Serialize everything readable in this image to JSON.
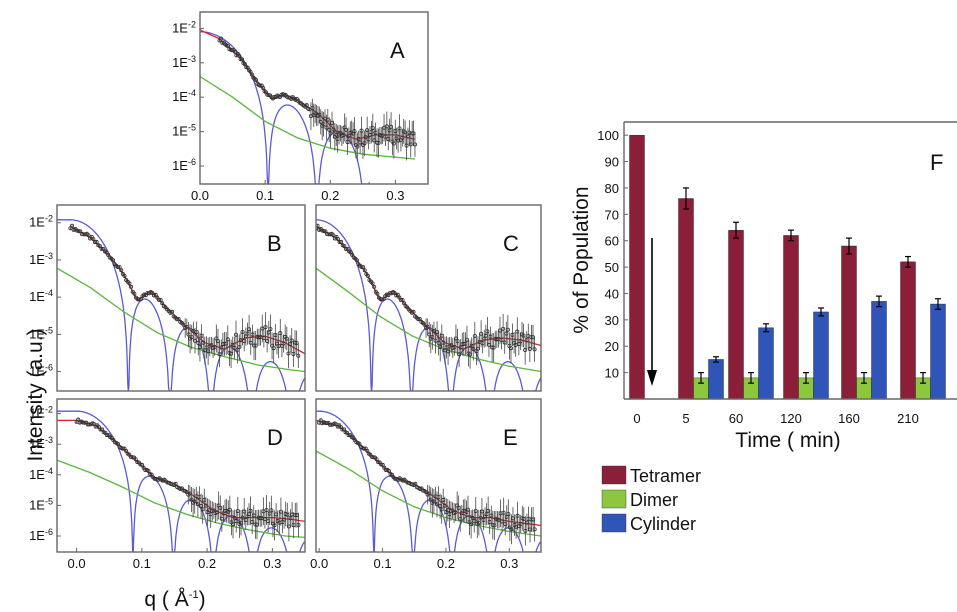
{
  "chart_data": [
    {
      "id": "A",
      "type": "line",
      "panel_label": "A",
      "yscale": "log",
      "xlim": [
        0.0,
        0.35
      ],
      "ylim": [
        3e-07,
        0.03
      ],
      "xticks": [
        "0.0",
        "0.1",
        "0.2",
        "0.3"
      ],
      "yticks": [
        {
          "label": "1E-2",
          "v": 0.01
        },
        {
          "label": "1E-3",
          "v": 0.001
        },
        {
          "label": "1E-4",
          "v": 0.0001
        },
        {
          "label": "1E-5",
          "v": 1e-05
        },
        {
          "label": "1E-6",
          "v": 1e-06
        }
      ],
      "series": [
        {
          "color": "#e02020",
          "x": [
            0.0,
            0.03,
            0.06,
            0.09,
            0.11,
            0.13,
            0.15,
            0.18,
            0.21,
            0.24,
            0.27,
            0.3,
            0.33
          ],
          "y": [
            0.009,
            0.005,
            0.0015,
            0.00025,
            9e-05,
            0.00012,
            8e-05,
            3.5e-05,
            1e-05,
            6e-06,
            8e-06,
            8e-06,
            6e-06
          ]
        },
        {
          "color": "#59b83a",
          "x": [
            0.0,
            0.05,
            0.1,
            0.15,
            0.2,
            0.25,
            0.3,
            0.33
          ],
          "y": [
            0.0004,
            0.0001,
            2e-05,
            6.5e-06,
            3.3e-06,
            2.2e-06,
            1.8e-06,
            1.6e-06
          ]
        }
      ],
      "sphere": {
        "color": "#5a5ad6",
        "R": 43,
        "A": 0.008,
        "y_floor": 3e-07,
        "x_max": 0.26
      },
      "observed": {
        "x_start": 0.03,
        "x_end": 0.33
      }
    },
    {
      "id": "B",
      "type": "line",
      "panel_label": "B",
      "yscale": "log",
      "xlim": [
        -0.02,
        0.35
      ],
      "ylim": [
        3e-07,
        0.03
      ],
      "yticks": [
        {
          "label": "1E-2",
          "v": 0.01
        },
        {
          "label": "1E-3",
          "v": 0.001
        },
        {
          "label": "1E-4",
          "v": 0.0001
        },
        {
          "label": "1E-5",
          "v": 1e-05
        },
        {
          "label": "1E-6",
          "v": 1e-06
        }
      ],
      "series": [
        {
          "color": "#e02020",
          "x": [
            0.0,
            0.03,
            0.06,
            0.08,
            0.1,
            0.12,
            0.14,
            0.17,
            0.2,
            0.23,
            0.26,
            0.29,
            0.32,
            0.35
          ],
          "y": [
            0.008,
            0.004,
            0.0012,
            0.0004,
            8e-05,
            0.00015,
            6e-05,
            1.8e-05,
            6e-06,
            4e-06,
            8e-06,
            9e-06,
            6e-06,
            3e-06
          ]
        },
        {
          "color": "#59b83a",
          "x": [
            -0.02,
            0.03,
            0.08,
            0.13,
            0.18,
            0.23,
            0.28,
            0.33,
            0.35
          ],
          "y": [
            0.0006,
            0.00018,
            4e-05,
            1.1e-05,
            4.5e-06,
            2.5e-06,
            1.5e-06,
            1.1e-06,
            1e-06
          ]
        }
      ],
      "sphere": {
        "color": "#5a5ad6",
        "R": 52,
        "A": 0.012,
        "y_floor": 3e-07,
        "x_max": 0.35
      },
      "observed": {
        "x_start": 0.0,
        "x_end": 0.34
      }
    },
    {
      "id": "C",
      "type": "line",
      "panel_label": "C",
      "yscale": "log",
      "xlim": [
        0.0,
        0.35
      ],
      "ylim": [
        3e-07,
        0.03
      ],
      "series": [
        {
          "color": "#e02020",
          "x": [
            0.0,
            0.03,
            0.06,
            0.08,
            0.1,
            0.12,
            0.14,
            0.17,
            0.2,
            0.23,
            0.26,
            0.29,
            0.32,
            0.35
          ],
          "y": [
            0.008,
            0.004,
            0.0012,
            0.0004,
            8e-05,
            0.00015,
            6e-05,
            1.8e-05,
            6e-06,
            4e-06,
            7e-06,
            8e-06,
            7e-06,
            5e-06
          ]
        },
        {
          "color": "#59b83a",
          "x": [
            0.0,
            0.05,
            0.1,
            0.15,
            0.2,
            0.25,
            0.3,
            0.35
          ],
          "y": [
            0.0006,
            0.00014,
            3e-05,
            9e-06,
            4e-06,
            2.2e-06,
            1.4e-06,
            1e-06
          ]
        }
      ],
      "sphere": {
        "color": "#5a5ad6",
        "R": 52,
        "A": 0.012,
        "y_floor": 3e-07,
        "x_max": 0.35
      },
      "observed": {
        "x_start": 0.0,
        "x_end": 0.34
      }
    },
    {
      "id": "D",
      "type": "line",
      "panel_label": "D",
      "yscale": "log",
      "xlim": [
        -0.03,
        0.35
      ],
      "ylim": [
        3e-07,
        0.03
      ],
      "xticks": [
        "0.0",
        "0.1",
        "0.2",
        "0.3"
      ],
      "yticks": [
        {
          "label": "1E-2",
          "v": 0.01
        },
        {
          "label": "1E-3",
          "v": 0.001
        },
        {
          "label": "1E-4",
          "v": 0.0001
        },
        {
          "label": "1E-5",
          "v": 1e-05
        },
        {
          "label": "1E-6",
          "v": 1e-06
        }
      ],
      "series": [
        {
          "color": "#e02020",
          "x": [
            -0.03,
            0.0,
            0.03,
            0.06,
            0.09,
            0.12,
            0.15,
            0.18,
            0.21,
            0.24,
            0.27,
            0.3,
            0.33,
            0.35
          ],
          "y": [
            0.006,
            0.006,
            0.004,
            0.0012,
            0.0003,
            8e-05,
            5e-05,
            2e-05,
            7e-06,
            4e-06,
            4e-06,
            4e-06,
            3.5e-06,
            3e-06
          ]
        },
        {
          "color": "#59b83a",
          "x": [
            -0.03,
            0.02,
            0.07,
            0.12,
            0.17,
            0.22,
            0.27,
            0.32,
            0.35
          ],
          "y": [
            0.0003,
            0.00012,
            4e-05,
            1.2e-05,
            5e-06,
            2.5e-06,
            1.5e-06,
            1e-06,
            9e-07
          ]
        }
      ],
      "sphere": {
        "color": "#5a5ad6",
        "R": 52,
        "A": 0.012,
        "y_floor": 3e-07,
        "x_max": 0.35
      },
      "observed": {
        "x_start": 0.0,
        "x_end": 0.34
      }
    },
    {
      "id": "E",
      "type": "line",
      "panel_label": "E",
      "yscale": "log",
      "xlim": [
        -0.005,
        0.35
      ],
      "ylim": [
        3e-07,
        0.03
      ],
      "xticks": [
        "0.0",
        "0.1",
        "0.2",
        "0.3"
      ],
      "series": [
        {
          "color": "#e02020",
          "x": [
            -0.005,
            0.03,
            0.06,
            0.09,
            0.12,
            0.15,
            0.18,
            0.21,
            0.24,
            0.27,
            0.3,
            0.33,
            0.35
          ],
          "y": [
            0.006,
            0.004,
            0.0012,
            0.0003,
            8e-05,
            5e-05,
            2e-05,
            7e-06,
            4e-06,
            4e-06,
            3e-06,
            2.5e-06,
            2.2e-06
          ]
        },
        {
          "color": "#59b83a",
          "x": [
            -0.005,
            0.05,
            0.1,
            0.15,
            0.2,
            0.25,
            0.3,
            0.35
          ],
          "y": [
            0.0006,
            0.00014,
            3e-05,
            9e-06,
            4e-06,
            2.2e-06,
            1.4e-06,
            1e-06
          ]
        }
      ],
      "sphere": {
        "color": "#5a5ad6",
        "R": 52,
        "A": 0.012,
        "y_floor": 3e-07,
        "x_max": 0.35
      },
      "observed": {
        "x_start": 0.0,
        "x_end": 0.34
      }
    },
    {
      "id": "F",
      "type": "bar",
      "panel_label": "F",
      "categories": [
        "0",
        "5",
        "60",
        "120",
        "160",
        "210"
      ],
      "series": [
        {
          "name": "Tetramer",
          "color": "#8b1f3a",
          "values": [
            100,
            76,
            64,
            62,
            58,
            52
          ],
          "errors": [
            0,
            4,
            3,
            2,
            3,
            2
          ]
        },
        {
          "name": "Dimer",
          "color": "#8dc63f",
          "values": [
            null,
            8,
            8,
            8,
            8,
            8
          ],
          "errors": [
            0,
            2,
            2,
            2,
            2,
            2
          ]
        },
        {
          "name": "Cylinder",
          "color": "#2f55b8",
          "values": [
            null,
            15,
            27,
            33,
            37,
            36
          ],
          "errors": [
            0,
            1,
            1.5,
            1.5,
            2,
            2
          ]
        }
      ],
      "ylim": [
        0,
        105
      ],
      "yticks": [
        "10",
        "20",
        "30",
        "40",
        "50",
        "60",
        "70",
        "80",
        "90",
        "100"
      ],
      "xlabel": "Time ( min)",
      "ylabel": "% of Population",
      "legend_position": "below"
    }
  ],
  "figure": {
    "shared_ylabel": "Intensity (a.u.)",
    "shared_xlabel": "q ( Å",
    "shared_xlabel_sup": "-1",
    "shared_xlabel_end": ")"
  }
}
